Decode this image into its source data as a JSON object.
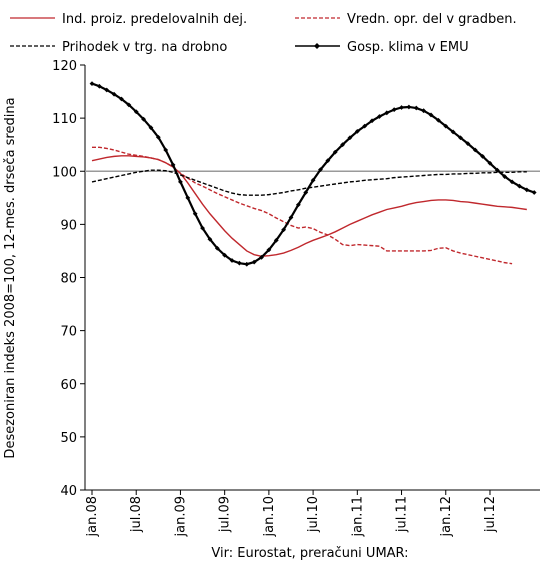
{
  "chart_data": {
    "type": "line",
    "y_axis_label": "Desezoniran indeks 2008=100, 12-mes. drseča sredina",
    "source": "Vir: Eurostat, preračuni UMAR:",
    "categories": [
      "jan.08",
      null,
      null,
      null,
      null,
      null,
      "jul.08",
      null,
      null,
      null,
      null,
      null,
      "jan.09",
      null,
      null,
      null,
      null,
      null,
      "jul.09",
      null,
      null,
      null,
      null,
      null,
      "jan.10",
      null,
      null,
      null,
      null,
      null,
      "jul.10",
      null,
      null,
      null,
      null,
      null,
      "jan.11",
      null,
      null,
      null,
      null,
      null,
      "jul.11",
      null,
      null,
      null,
      null,
      null,
      "jan.12",
      null,
      null,
      null,
      null,
      null,
      "jul.12",
      null,
      null,
      null,
      null,
      null,
      null
    ],
    "ylim": [
      40,
      120
    ],
    "yticks": [
      40,
      50,
      60,
      70,
      80,
      90,
      100,
      110,
      120
    ],
    "reference_line": 100,
    "series": [
      {
        "name": "Ind. proiz. predelovalnih dej.",
        "color": "#c0282d",
        "dash": "solid",
        "values": [
          102,
          102.3,
          102.6,
          102.8,
          102.9,
          102.9,
          102.8,
          102.7,
          102.5,
          102.2,
          101.6,
          100.8,
          99.6,
          97.8,
          95.8,
          93.8,
          92,
          90.4,
          88.8,
          87.4,
          86.2,
          85,
          84.3,
          84,
          84.1,
          84.3,
          84.6,
          85.1,
          85.7,
          86.4,
          87,
          87.5,
          88,
          88.6,
          89.3,
          90,
          90.6,
          91.2,
          91.8,
          92.3,
          92.8,
          93.1,
          93.4,
          93.8,
          94.1,
          94.3,
          94.5,
          94.6,
          94.6,
          94.5,
          94.3,
          94.2,
          94,
          93.8,
          93.6,
          93.4,
          93.3,
          93.2,
          93,
          92.8,
          null
        ]
      },
      {
        "name": "Vredn. opr. del v gradben.",
        "color": "#c0282d",
        "dash": "dashed",
        "values": [
          104.5,
          104.5,
          104.3,
          104,
          103.6,
          103.2,
          103,
          102.8,
          102.5,
          102.2,
          101.6,
          100.8,
          99.6,
          98.7,
          97.8,
          97.2,
          96.5,
          95.8,
          95.2,
          94.6,
          94,
          93.5,
          93,
          92.6,
          92,
          91.2,
          90.5,
          89.8,
          89.3,
          89.5,
          89.2,
          88.5,
          88,
          87.2,
          86.2,
          86,
          86.2,
          86.1,
          86,
          85.9,
          85,
          85,
          85,
          85,
          85,
          85,
          85.1,
          85.5,
          85.6,
          85,
          84.6,
          84.3,
          84,
          83.7,
          83.4,
          83.1,
          82.8,
          82.6,
          null,
          null,
          null
        ]
      },
      {
        "name": "Prihodek v trg. na drobno",
        "color": "#000000",
        "dash": "dashed",
        "values": [
          98,
          98.3,
          98.6,
          98.9,
          99.2,
          99.5,
          99.8,
          100,
          100.2,
          100.2,
          100.1,
          99.8,
          99.3,
          98.8,
          98.3,
          97.8,
          97.3,
          96.8,
          96.3,
          95.9,
          95.6,
          95.5,
          95.5,
          95.5,
          95.6,
          95.8,
          96,
          96.3,
          96.5,
          96.8,
          97,
          97.2,
          97.4,
          97.6,
          97.8,
          98,
          98.1,
          98.3,
          98.4,
          98.5,
          98.6,
          98.8,
          98.9,
          99,
          99.1,
          99.2,
          99.3,
          99.4,
          99.4,
          99.5,
          99.5,
          99.6,
          99.6,
          99.7,
          99.7,
          99.8,
          99.8,
          99.8,
          99.9,
          99.9,
          null
        ]
      },
      {
        "name": "Gosp. klima v EMU",
        "color": "#000000",
        "dash": "solid",
        "markers": true,
        "values": [
          116.5,
          116,
          115.3,
          114.5,
          113.6,
          112.5,
          111.2,
          109.8,
          108.2,
          106.4,
          104,
          101.2,
          98,
          95,
          92,
          89.3,
          87.2,
          85.5,
          84.2,
          83.2,
          82.7,
          82.5,
          82.9,
          83.8,
          85.2,
          87,
          89,
          91.3,
          93.7,
          96,
          98.3,
          100.3,
          102,
          103.6,
          105,
          106.3,
          107.5,
          108.5,
          109.5,
          110.3,
          111,
          111.6,
          112,
          112.1,
          111.9,
          111.4,
          110.6,
          109.6,
          108.5,
          107.4,
          106.3,
          105.2,
          104,
          102.8,
          101.5,
          100.2,
          99,
          98,
          97.2,
          96.5,
          96
        ]
      }
    ]
  }
}
